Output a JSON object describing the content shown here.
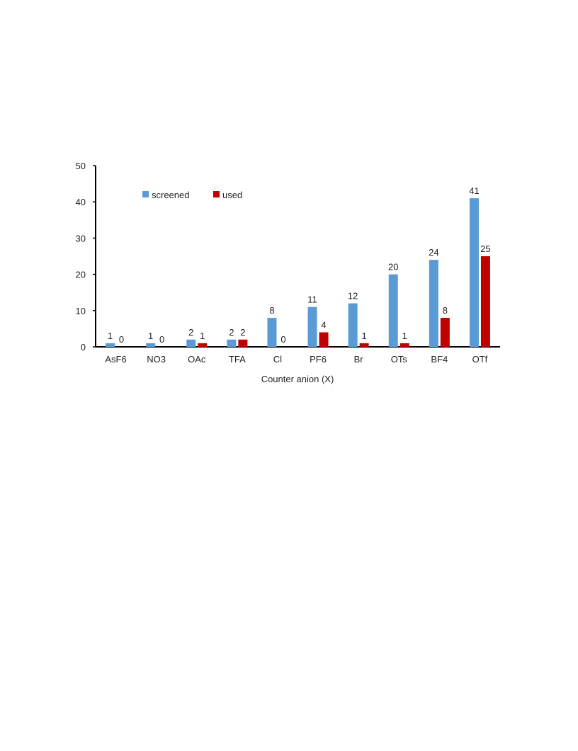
{
  "chart_data": {
    "type": "bar",
    "title": "",
    "xlabel": "Counter anion (X)",
    "ylabel": "",
    "ylim": [
      0,
      50
    ],
    "yticks": [
      0,
      10,
      20,
      30,
      40,
      50
    ],
    "grid": false,
    "legend_position": "top-left",
    "categories": [
      "AsF6",
      "NO3",
      "OAc",
      "TFA",
      "Cl",
      "PF6",
      "Br",
      "OTs",
      "BF4",
      "OTf"
    ],
    "series": [
      {
        "name": "screened",
        "color": "#5b9bd5",
        "values": [
          1,
          1,
          2,
          2,
          8,
          11,
          12,
          20,
          24,
          41
        ]
      },
      {
        "name": "used",
        "color": "#c00000",
        "values": [
          0,
          0,
          1,
          2,
          0,
          4,
          1,
          1,
          8,
          25
        ]
      }
    ]
  }
}
